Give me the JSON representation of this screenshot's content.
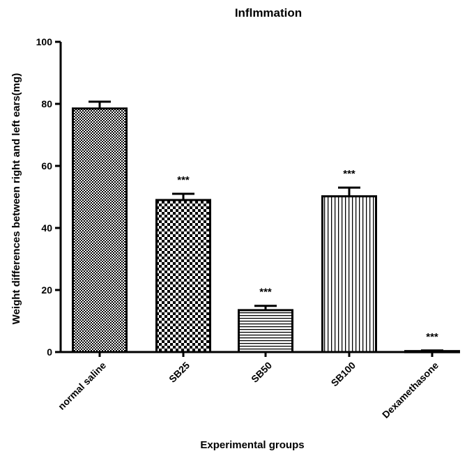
{
  "chart_data": {
    "type": "bar",
    "title": "Inflmmation",
    "xlabel": "Experimental groups",
    "ylabel": "Weight differences between right and left ears(mg)",
    "ylim": [
      0,
      100
    ],
    "yticks": [
      0,
      20,
      40,
      60,
      80,
      100
    ],
    "categories": [
      "normal saline",
      "SB25",
      "SB50",
      "SB100",
      "Dexamethasone"
    ],
    "values": [
      78.5,
      49,
      13.5,
      50.2,
      0.3
    ],
    "errors": [
      2.2,
      2.0,
      1.4,
      2.8,
      0.2
    ],
    "significance": [
      "",
      "***",
      "***",
      "***",
      "***"
    ],
    "patterns": [
      "fine-checker",
      "coarse-checker",
      "horizontal-lines",
      "vertical-lines",
      "solid-white"
    ],
    "grid": false,
    "legend": "none"
  }
}
